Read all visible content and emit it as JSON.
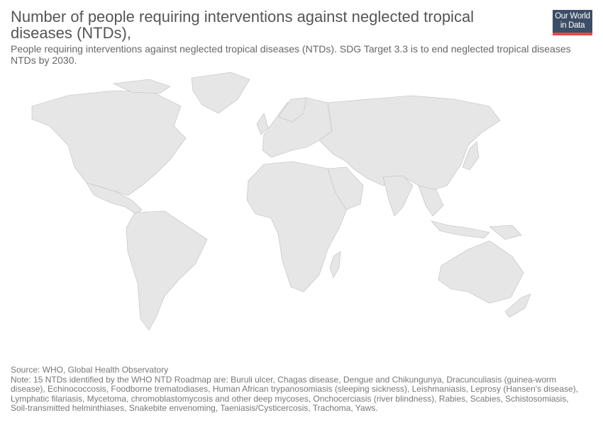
{
  "header": {
    "title": "Number of people requiring interventions against neglected tropical diseases (NTDs),",
    "subtitle": "People requiring interventions against neglected tropical diseases (NTDs). SDG Target 3.3 is to end neglected tropical diseases NTDs by 2030."
  },
  "logo": {
    "line1": "Our World",
    "line2": "in Data"
  },
  "map": {
    "land_color": "#e6e6e6",
    "border_color": "#bdbdbd",
    "regions": [
      "North America",
      "Greenland",
      "Central America",
      "South America",
      "Europe",
      "Africa",
      "Madagascar",
      "Arabian Peninsula",
      "Asia",
      "India",
      "Southeast Asia",
      "Japan",
      "Indonesia",
      "New Guinea",
      "Australia",
      "New Zealand"
    ]
  },
  "footer": {
    "source": "Source: WHO, Global Health Observatory",
    "note": "Note: 15 NTDs identified by the WHO NTD Roadmap are: Buruli ulcer, Chagas disease, Dengue and Chikungunya, Dracunculiasis (guinea-worm disease), Echinococcosis, Foodborne trematodiases, Human African trypanosomiasis (sleeping sickness), Leishmaniasis, Leprosy (Hansen's disease), Lymphatic filariasis, Mycetoma, chromoblastomycosis and other deep mycoses, Onchocerciasis (river blindness), Rabies, Scabies, Schistosomiasis, Soil-transmitted helminthiases, Snakebite envenoming, Taeniasis/Cysticercosis, Trachoma, Yaws."
  }
}
